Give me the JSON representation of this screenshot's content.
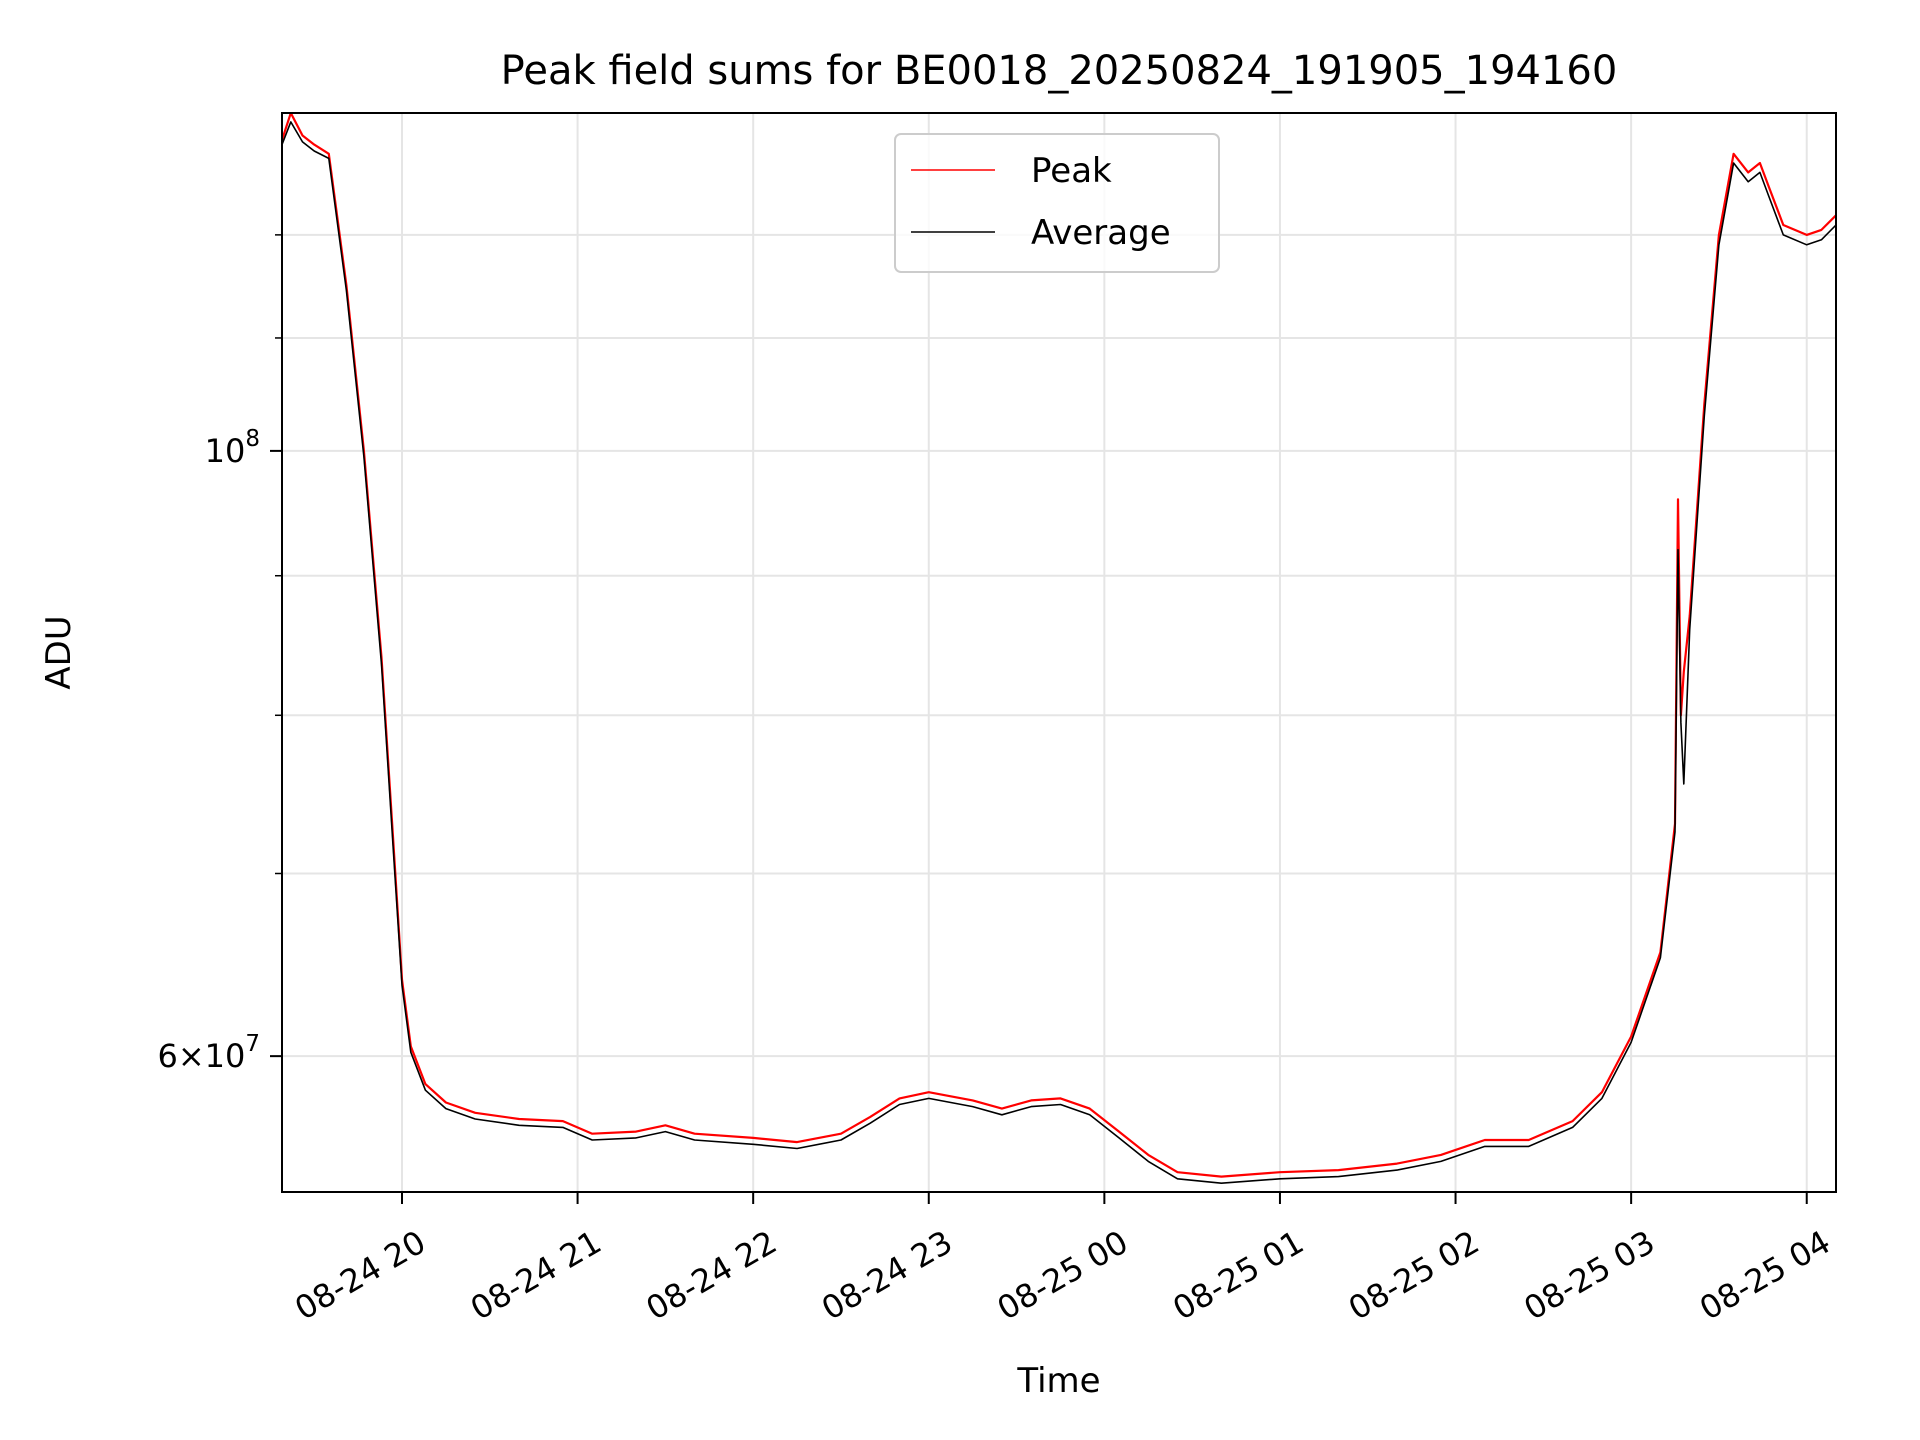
{
  "chart_data": {
    "type": "line",
    "title": "Peak field sums for BE0018_20250824_191905_194160",
    "xlabel": "Time",
    "ylabel": "ADU",
    "y_scale": "log",
    "grid": true,
    "legend_position": "top-center",
    "xlim": [
      "2025-08-24 19:19",
      "2025-08-25 04:10"
    ],
    "ylim": [
      53500000,
      133000000
    ],
    "x_ticks": [
      {
        "t": "2025-08-24 20:00",
        "label": "08-24 20"
      },
      {
        "t": "2025-08-24 21:00",
        "label": "08-24 21"
      },
      {
        "t": "2025-08-24 22:00",
        "label": "08-24 22"
      },
      {
        "t": "2025-08-24 23:00",
        "label": "08-24 23"
      },
      {
        "t": "2025-08-25 00:00",
        "label": "08-25 00"
      },
      {
        "t": "2025-08-25 01:00",
        "label": "08-25 01"
      },
      {
        "t": "2025-08-25 02:00",
        "label": "08-25 02"
      },
      {
        "t": "2025-08-25 03:00",
        "label": "08-25 03"
      },
      {
        "t": "2025-08-25 04:00",
        "label": "08-25 04"
      }
    ],
    "y_major_ticks": [
      {
        "v": 60000000,
        "mantissa": "6",
        "exp": "7"
      },
      {
        "v": 100000000,
        "mantissa": "",
        "exp": "8"
      }
    ],
    "y_minor_ticks": [
      70000000,
      80000000,
      90000000,
      110000000,
      120000000
    ],
    "series": [
      {
        "name": "Peak",
        "color": "#ff0000",
        "points": [
          [
            "2025-08-24 19:19",
            130000000
          ],
          [
            "2025-08-24 19:22",
            133000000
          ],
          [
            "2025-08-24 19:26",
            130500000
          ],
          [
            "2025-08-24 19:30",
            129500000
          ],
          [
            "2025-08-24 19:35",
            128500000
          ],
          [
            "2025-08-24 19:41",
            115000000
          ],
          [
            "2025-08-24 19:47",
            100000000
          ],
          [
            "2025-08-24 19:53",
            84000000
          ],
          [
            "2025-08-24 19:57",
            72000000
          ],
          [
            "2025-08-24 20:00",
            64000000
          ],
          [
            "2025-08-24 20:03",
            60500000
          ],
          [
            "2025-08-24 20:08",
            58600000
          ],
          [
            "2025-08-24 20:15",
            57700000
          ],
          [
            "2025-08-24 20:25",
            57200000
          ],
          [
            "2025-08-24 20:40",
            56900000
          ],
          [
            "2025-08-24 20:55",
            56800000
          ],
          [
            "2025-08-24 21:05",
            56200000
          ],
          [
            "2025-08-24 21:20",
            56300000
          ],
          [
            "2025-08-24 21:30",
            56600000
          ],
          [
            "2025-08-24 21:40",
            56200000
          ],
          [
            "2025-08-24 22:00",
            56000000
          ],
          [
            "2025-08-24 22:15",
            55800000
          ],
          [
            "2025-08-24 22:30",
            56200000
          ],
          [
            "2025-08-24 22:40",
            57000000
          ],
          [
            "2025-08-24 22:50",
            57900000
          ],
          [
            "2025-08-24 23:00",
            58200000
          ],
          [
            "2025-08-24 23:15",
            57800000
          ],
          [
            "2025-08-24 23:25",
            57400000
          ],
          [
            "2025-08-24 23:35",
            57800000
          ],
          [
            "2025-08-24 23:45",
            57900000
          ],
          [
            "2025-08-24 23:55",
            57400000
          ],
          [
            "2025-08-25 00:05",
            56300000
          ],
          [
            "2025-08-25 00:15",
            55200000
          ],
          [
            "2025-08-25 00:25",
            54400000
          ],
          [
            "2025-08-25 00:40",
            54200000
          ],
          [
            "2025-08-25 01:00",
            54400000
          ],
          [
            "2025-08-25 01:20",
            54500000
          ],
          [
            "2025-08-25 01:40",
            54800000
          ],
          [
            "2025-08-25 01:55",
            55200000
          ],
          [
            "2025-08-25 02:10",
            55900000
          ],
          [
            "2025-08-25 02:25",
            55900000
          ],
          [
            "2025-08-25 02:40",
            56800000
          ],
          [
            "2025-08-25 02:50",
            58200000
          ],
          [
            "2025-08-25 03:00",
            61000000
          ],
          [
            "2025-08-25 03:10",
            65500000
          ],
          [
            "2025-08-25 03:15",
            73000000
          ],
          [
            "2025-08-25 03:16",
            96000000
          ],
          [
            "2025-08-25 03:17",
            80000000
          ],
          [
            "2025-08-25 03:18",
            83000000
          ],
          [
            "2025-08-25 03:20",
            87000000
          ],
          [
            "2025-08-25 03:25",
            104000000
          ],
          [
            "2025-08-25 03:30",
            120000000
          ],
          [
            "2025-08-25 03:35",
            128500000
          ],
          [
            "2025-08-25 03:40",
            126500000
          ],
          [
            "2025-08-25 03:44",
            127500000
          ],
          [
            "2025-08-25 03:47",
            125000000
          ],
          [
            "2025-08-25 03:52",
            121000000
          ],
          [
            "2025-08-25 04:00",
            120000000
          ],
          [
            "2025-08-25 04:05",
            120500000
          ],
          [
            "2025-08-25 04:10",
            122000000
          ]
        ]
      },
      {
        "name": "Average",
        "color": "#000000",
        "points": [
          [
            "2025-08-24 19:19",
            129500000
          ],
          [
            "2025-08-24 19:22",
            132000000
          ],
          [
            "2025-08-24 19:26",
            129800000
          ],
          [
            "2025-08-24 19:30",
            128800000
          ],
          [
            "2025-08-24 19:35",
            128000000
          ],
          [
            "2025-08-24 19:41",
            114500000
          ],
          [
            "2025-08-24 19:47",
            99500000
          ],
          [
            "2025-08-24 19:53",
            83500000
          ],
          [
            "2025-08-24 19:57",
            71500000
          ],
          [
            "2025-08-24 20:00",
            63700000
          ],
          [
            "2025-08-24 20:03",
            60200000
          ],
          [
            "2025-08-24 20:08",
            58300000
          ],
          [
            "2025-08-24 20:15",
            57400000
          ],
          [
            "2025-08-24 20:25",
            56900000
          ],
          [
            "2025-08-24 20:40",
            56600000
          ],
          [
            "2025-08-24 20:55",
            56500000
          ],
          [
            "2025-08-24 21:05",
            55900000
          ],
          [
            "2025-08-24 21:20",
            56000000
          ],
          [
            "2025-08-24 21:30",
            56300000
          ],
          [
            "2025-08-24 21:40",
            55900000
          ],
          [
            "2025-08-24 22:00",
            55700000
          ],
          [
            "2025-08-24 22:15",
            55500000
          ],
          [
            "2025-08-24 22:30",
            55900000
          ],
          [
            "2025-08-24 22:40",
            56700000
          ],
          [
            "2025-08-24 22:50",
            57600000
          ],
          [
            "2025-08-24 23:00",
            57900000
          ],
          [
            "2025-08-24 23:15",
            57500000
          ],
          [
            "2025-08-24 23:25",
            57100000
          ],
          [
            "2025-08-24 23:35",
            57500000
          ],
          [
            "2025-08-24 23:45",
            57600000
          ],
          [
            "2025-08-24 23:55",
            57100000
          ],
          [
            "2025-08-25 00:05",
            56000000
          ],
          [
            "2025-08-25 00:15",
            54900000
          ],
          [
            "2025-08-25 00:25",
            54100000
          ],
          [
            "2025-08-25 00:40",
            53900000
          ],
          [
            "2025-08-25 01:00",
            54100000
          ],
          [
            "2025-08-25 01:20",
            54200000
          ],
          [
            "2025-08-25 01:40",
            54500000
          ],
          [
            "2025-08-25 01:55",
            54900000
          ],
          [
            "2025-08-25 02:10",
            55600000
          ],
          [
            "2025-08-25 02:25",
            55600000
          ],
          [
            "2025-08-25 02:40",
            56500000
          ],
          [
            "2025-08-25 02:50",
            57900000
          ],
          [
            "2025-08-25 03:00",
            60700000
          ],
          [
            "2025-08-25 03:10",
            65200000
          ],
          [
            "2025-08-25 03:15",
            72500000
          ],
          [
            "2025-08-25 03:16",
            92000000
          ],
          [
            "2025-08-25 03:17",
            79500000
          ],
          [
            "2025-08-25 03:18",
            75500000
          ],
          [
            "2025-08-25 03:20",
            86000000
          ],
          [
            "2025-08-25 03:25",
            103000000
          ],
          [
            "2025-08-25 03:30",
            119000000
          ],
          [
            "2025-08-25 03:35",
            127500000
          ],
          [
            "2025-08-25 03:40",
            125500000
          ],
          [
            "2025-08-25 03:44",
            126500000
          ],
          [
            "2025-08-25 03:47",
            124000000
          ],
          [
            "2025-08-25 03:52",
            120000000
          ],
          [
            "2025-08-25 04:00",
            119000000
          ],
          [
            "2025-08-25 04:05",
            119500000
          ],
          [
            "2025-08-25 04:10",
            121000000
          ]
        ]
      }
    ]
  }
}
